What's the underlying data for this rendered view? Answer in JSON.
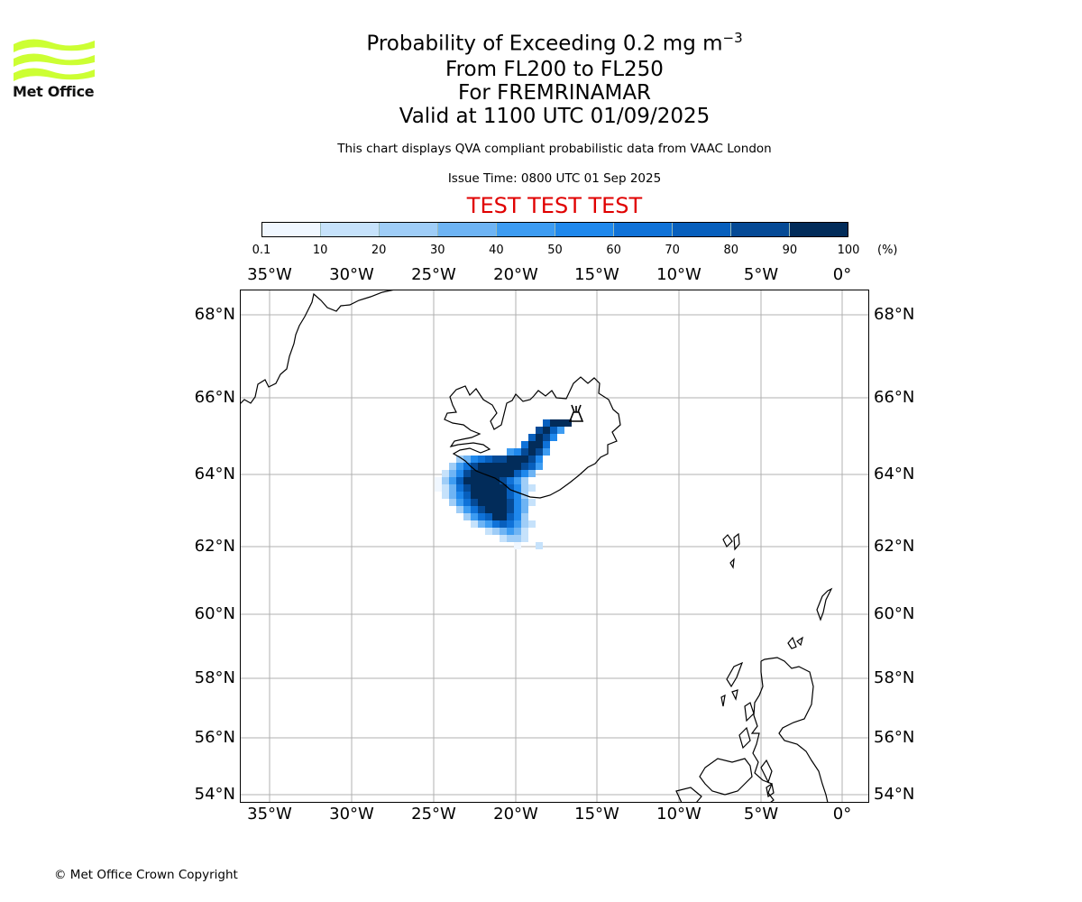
{
  "logo": {
    "text": "Met Office",
    "icon": "met-office-wave-logo",
    "color": "#ccff33"
  },
  "title": {
    "line1_prefix": "Probability of Exceeding 0.2 mg m",
    "line1_sup": "−3",
    "line2": "From FL200 to FL250",
    "line3": "For FREMRINAMAR",
    "line4": "Valid at 1100 UTC 01/09/2025"
  },
  "subtitle": "This chart displays QVA compliant probabilistic data from VAAC London",
  "issue_time": "Issue Time: 0800 UTC 01 Sep 2025",
  "test_banner": "TEST TEST TEST",
  "test_color": "#e00000",
  "colorbar": {
    "ticks": [
      "0.1",
      "10",
      "20",
      "30",
      "40",
      "50",
      "60",
      "70",
      "80",
      "90",
      "100"
    ],
    "unit": "(%)",
    "colors": [
      "#f0f7ff",
      "#c6e2fb",
      "#9fcdf7",
      "#6eb4f4",
      "#3d9cf2",
      "#1f88ec",
      "#0f72d8",
      "#075fbd",
      "#054a96",
      "#022c5a"
    ]
  },
  "axes": {
    "lon_labels": [
      "35°W",
      "30°W",
      "25°W",
      "20°W",
      "15°W",
      "10°W",
      "5°W",
      "0°"
    ],
    "lat_labels": [
      "68°N",
      "66°N",
      "64°N",
      "62°N",
      "60°N",
      "58°N",
      "56°N",
      "54°N"
    ]
  },
  "volcano": {
    "icon": "volcano-icon"
  },
  "copyright": "© Met Office Crown Copyright"
}
